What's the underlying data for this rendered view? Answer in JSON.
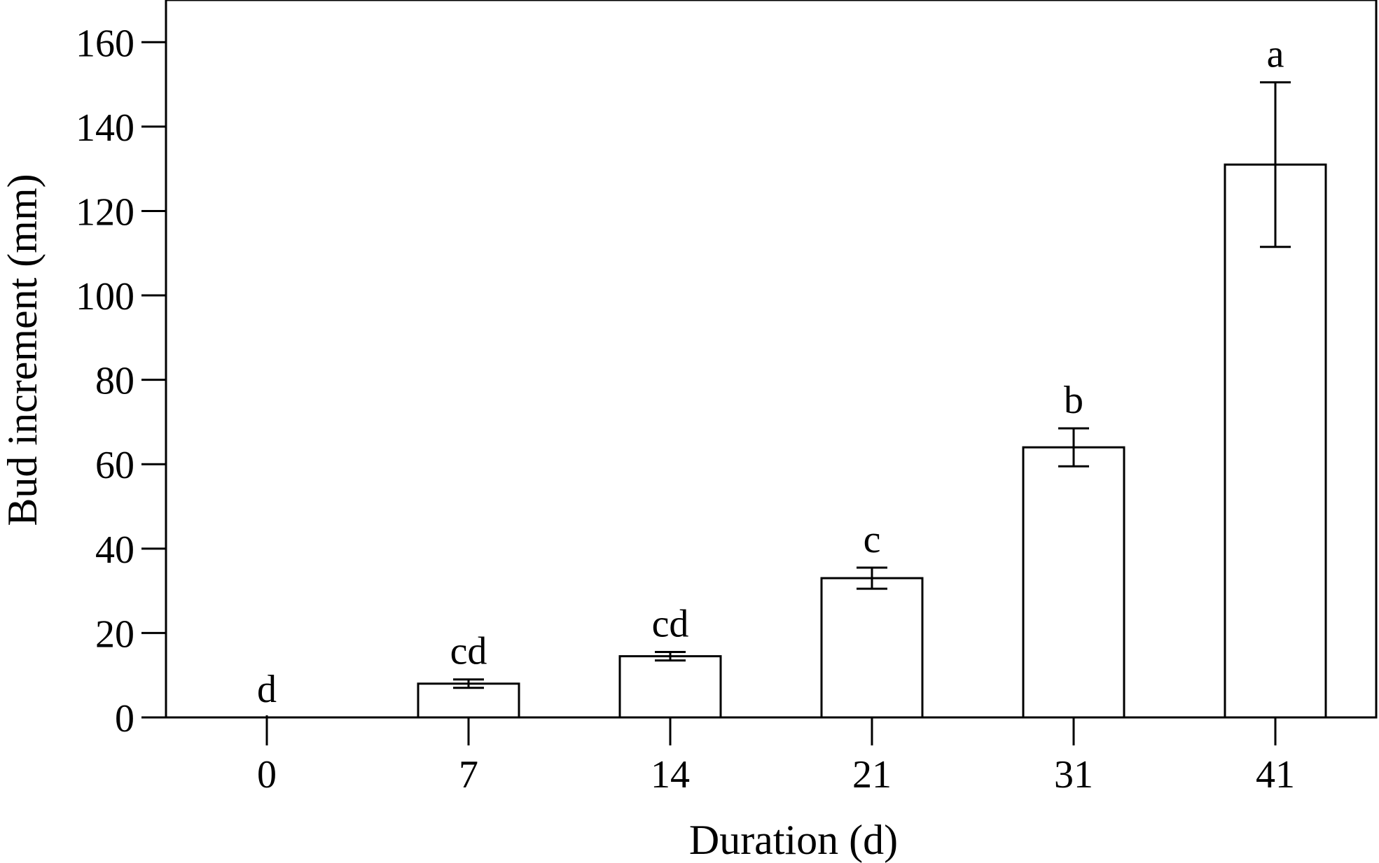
{
  "chart_data": {
    "type": "bar",
    "xlabel": "Duration (d)",
    "ylabel": "Bud increment (mm)",
    "categories": [
      "0",
      "7",
      "14",
      "21",
      "31",
      "41"
    ],
    "values": [
      0,
      8,
      14.5,
      33,
      64,
      131
    ],
    "error": [
      0,
      1,
      1,
      2.5,
      4.5,
      19.5
    ],
    "significance": [
      "d",
      "cd",
      "cd",
      "c",
      "b",
      "a"
    ],
    "yticks": [
      "0",
      "20",
      "40",
      "60",
      "80",
      "100",
      "120",
      "140",
      "160"
    ],
    "ylim": [
      0,
      170
    ],
    "grid": false,
    "legend": "none",
    "colors": {
      "bar_fill": "#ffffff",
      "stroke": "#000000"
    }
  }
}
